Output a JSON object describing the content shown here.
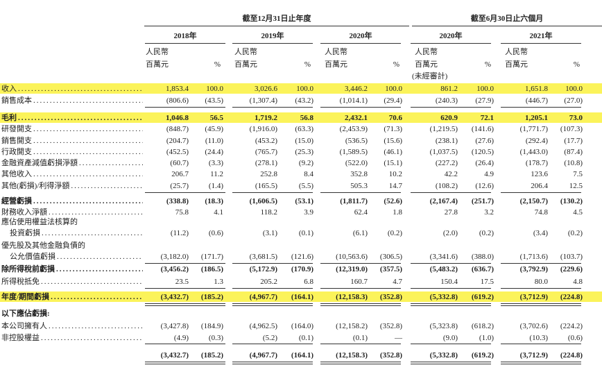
{
  "header": {
    "group_headers": [
      "截至12月31日止年度",
      "截至6月30日止六個月"
    ],
    "years": [
      "2018年",
      "2019年",
      "2020年",
      "2020年",
      "2021年"
    ],
    "currency_label": [
      "人民幣",
      "百萬元"
    ],
    "percent_label": "%",
    "unaudited_note": "(未經審計)"
  },
  "table": {
    "rows": [
      {
        "label": [
          "收入"
        ],
        "highlight": true,
        "values": [
          "1,853.4",
          "100.0",
          "3,026.6",
          "100.0",
          "3,446.2",
          "100.0",
          "861.2",
          "100.0",
          "1,651.8",
          "100.0"
        ]
      },
      {
        "label": [
          "銷售成本"
        ],
        "values": [
          "(806.6)",
          "(43.5)",
          "(1,307.4)",
          "(43.2)",
          "(1,014.1)",
          "(29.4)",
          "(240.3)",
          "(27.9)",
          "(446.7)",
          "(27.0)"
        ]
      },
      {
        "label": [
          "毛利"
        ],
        "bold": true,
        "highlight": true,
        "values": [
          "1,046.8",
          "56.5",
          "1,719.2",
          "56.8",
          "2,432.1",
          "70.6",
          "620.9",
          "72.1",
          "1,205.1",
          "73.0"
        ]
      },
      {
        "label": [
          "研發開支"
        ],
        "values": [
          "(848.7)",
          "(45.9)",
          "(1,916.0)",
          "(63.3)",
          "(2,453.9)",
          "(71.3)",
          "(1,219.5)",
          "(141.6)",
          "(1,771.7)",
          "(107.3)"
        ]
      },
      {
        "label": [
          "銷售開支"
        ],
        "values": [
          "(204.7)",
          "(11.0)",
          "(453.2)",
          "(15.0)",
          "(536.5)",
          "(15.6)",
          "(238.1)",
          "(27.6)",
          "(292.4)",
          "(17.7)"
        ]
      },
      {
        "label": [
          "行政開支"
        ],
        "values": [
          "(452.5)",
          "(24.4)",
          "(765.7)",
          "(25.3)",
          "(1,589.5)",
          "(46.1)",
          "(1,037.5)",
          "(120.5)",
          "(1,443.0)",
          "(87.4)"
        ]
      },
      {
        "label": [
          "金融資產減值虧損淨額"
        ],
        "values": [
          "(60.7)",
          "(3.3)",
          "(278.1)",
          "(9.2)",
          "(522.0)",
          "(15.1)",
          "(227.2)",
          "(26.4)",
          "(178.7)",
          "(10.8)"
        ]
      },
      {
        "label": [
          "其他收入"
        ],
        "values": [
          "206.7",
          "11.2",
          "252.8",
          "8.4",
          "352.8",
          "10.2",
          "42.2",
          "4.9",
          "123.6",
          "7.5"
        ]
      },
      {
        "label": [
          "其他(虧損)/利得淨額"
        ],
        "values": [
          "(25.7)",
          "(1.4)",
          "(165.5)",
          "(5.5)",
          "505.3",
          "14.7",
          "(108.2)",
          "(12.6)",
          "206.4",
          "12.5"
        ]
      },
      {
        "label": [
          "經營虧損"
        ],
        "bold": true,
        "values": [
          "(338.8)",
          "(18.3)",
          "(1,606.5)",
          "(53.1)",
          "(1,811.7)",
          "(52.6)",
          "(2,167.4)",
          "(251.7)",
          "(2,150.7)",
          "(130.2)"
        ]
      },
      {
        "label": [
          "財務收入淨額"
        ],
        "values": [
          "75.8",
          "4.1",
          "118.2",
          "3.9",
          "62.4",
          "1.8",
          "27.8",
          "3.2",
          "74.8",
          "4.5"
        ]
      },
      {
        "label": [
          "應佔使用權益法核算的",
          "投資虧損"
        ],
        "values": [
          "(11.2)",
          "(0.6)",
          "(3.1)",
          "(0.1)",
          "(6.1)",
          "(0.2)",
          "(2.0)",
          "(0.2)",
          "(3.4)",
          "(0.2)"
        ]
      },
      {
        "label": [
          "優先股及其他金融負債的",
          "公允價值虧損"
        ],
        "values": [
          "(3,182.0)",
          "(171.7)",
          "(3,681.5)",
          "(121.6)",
          "(10,563.6)",
          "(306.5)",
          "(3,341.6)",
          "(388.0)",
          "(1,713.6)",
          "(103.7)"
        ]
      },
      {
        "label": [
          "除所得稅前虧損"
        ],
        "bold": true,
        "values": [
          "(3,456.2)",
          "(186.5)",
          "(5,172.9)",
          "(170.9)",
          "(12,319.0)",
          "(357.5)",
          "(5,483.2)",
          "(636.7)",
          "(3,792.9)",
          "(229.6)"
        ]
      },
      {
        "label": [
          "所得稅抵免"
        ],
        "values": [
          "23.5",
          "1.3",
          "205.2",
          "6.8",
          "160.7",
          "4.7",
          "150.4",
          "17.5",
          "80.0",
          "4.8"
        ]
      },
      {
        "label": [
          "年度/期間虧損"
        ],
        "bold": true,
        "highlight": true,
        "values": [
          "(3,432.7)",
          "(185.2)",
          "(4,967.7)",
          "(164.1)",
          "(12,158.3)",
          "(352.8)",
          "(5,332.8)",
          "(619.2)",
          "(3,712.9)",
          "(224.8)"
        ]
      },
      {
        "label": [
          "以下應佔虧損:"
        ],
        "bold": true
      },
      {
        "label": [
          "本公司擁有人"
        ],
        "values": [
          "(3,427.8)",
          "(184.9)",
          "(4,962.5)",
          "(164.0)",
          "(12,158.2)",
          "(352.8)",
          "(5,323.8)",
          "(618.2)",
          "(3,702.6)",
          "(224.2)"
        ]
      },
      {
        "label": [
          "非控股權益"
        ],
        "values": [
          "(4.9)",
          "(0.3)",
          "(5.2)",
          "(0.1)",
          "(0.1)",
          "—",
          "(9.0)",
          "(1.0)",
          "(10.3)",
          "(0.6)"
        ]
      },
      {
        "label": [],
        "bold": true,
        "values": [
          "(3,432.7)",
          "(185.2)",
          "(4,967.7)",
          "(164.1)",
          "(12,158.3)",
          "(352.8)",
          "(5,332.8)",
          "(619.2)",
          "(3,712.9)",
          "(224.8)"
        ]
      }
    ]
  }
}
